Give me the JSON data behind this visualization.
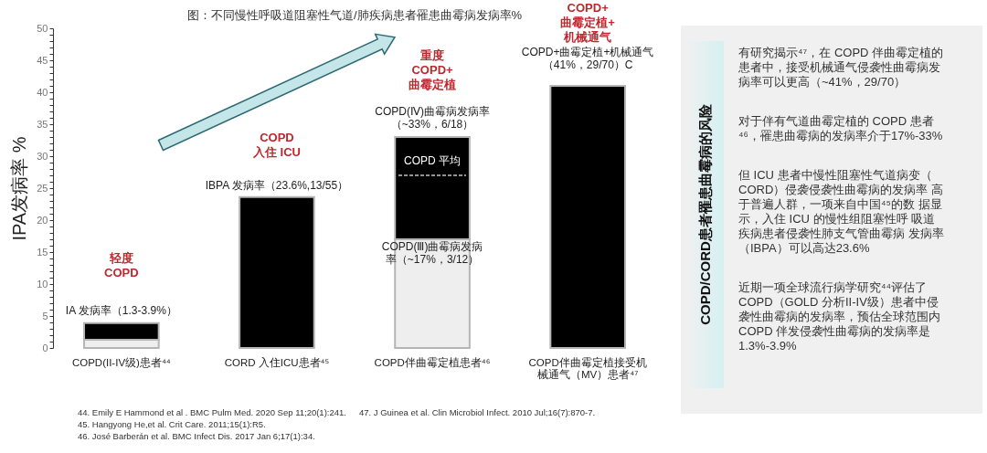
{
  "chart_data": [
    {
      "type": "bar",
      "title": "图：不同慢性呼吸道阻塞性气道/肺疾病患者罹患曲霉病发病率%",
      "ylabel": "IPA发病率 %",
      "categories": [
        "COPD(II-IV级)患者⁴⁴",
        "CORD 入住ICU患者⁴⁵",
        "COPD伴曲霉定植患者⁴⁶",
        "COPD伴曲霉定植接受机械通气（MV）患者⁴⁷"
      ],
      "stacked": true,
      "series": [
        {
          "color": "#eeeeee",
          "values": [
            1.3,
            null,
            17,
            null
          ]
        },
        {
          "color": "#000000",
          "values": [
            2.6,
            23.6,
            16,
            41
          ]
        }
      ],
      "ylim": [
        0,
        50
      ],
      "yticks": [
        0,
        {
          "value": 1,
          "label": null
        },
        {
          "value": 2,
          "label": null
        },
        {
          "value": 3,
          "label": null
        },
        {
          "value": 4,
          "label": null
        },
        5,
        {
          "value": 6,
          "label": null
        },
        {
          "value": 7,
          "label": null
        },
        {
          "value": 8,
          "label": null
        },
        {
          "value": 9,
          "label": null
        },
        10,
        {
          "value": 11,
          "label": null
        },
        {
          "value": 12,
          "label": null
        },
        {
          "value": 13,
          "label": null
        },
        {
          "value": 14,
          "label": null
        },
        15,
        {
          "value": 16,
          "label": null
        },
        {
          "value": 17,
          "label": null
        },
        {
          "value": 18,
          "label": null
        },
        {
          "value": 19,
          "label": null
        },
        20,
        {
          "value": 21,
          "label": null
        },
        {
          "value": 22,
          "label": null
        },
        {
          "value": 23,
          "label": null
        },
        {
          "value": 24,
          "label": null
        },
        25,
        {
          "value": 26,
          "label": null
        },
        {
          "value": 27,
          "label": null
        },
        {
          "value": 28,
          "label": null
        },
        {
          "value": 29,
          "label": null
        },
        30,
        {
          "value": 31,
          "label": null
        },
        {
          "value": 32,
          "label": null
        },
        {
          "value": 33,
          "label": null
        },
        {
          "value": 34,
          "label": null
        },
        35,
        {
          "value": 36,
          "label": null
        },
        {
          "value": 37,
          "label": null
        },
        {
          "value": 38,
          "label": null
        },
        {
          "value": 39,
          "label": null
        },
        40,
        {
          "value": 41,
          "label": null
        },
        {
          "value": 42,
          "label": null
        },
        {
          "value": 43,
          "label": null
        },
        {
          "value": 44,
          "label": null
        },
        45,
        {
          "value": 46,
          "label": null
        },
        {
          "value": 47,
          "label": null
        },
        {
          "value": 48,
          "label": null
        },
        {
          "value": 49,
          "label": null
        },
        50
      ],
      "ref_lines": [
        {
          "axis": "y",
          "value": 27,
          "label": "COPD 平均",
          "color": "#ffffff",
          "line_style": "dashed"
        }
      ],
      "annotations": [
        "IA 发病率（1.3-3.9%）",
        "轻度COPD",
        "IBPA 发病率（23.6%,13/55）",
        "COPD入住 ICU",
        "COPD(Ⅳ)曲霉病发病率（~33%，6/18）",
        "重度COPD+曲霉定植",
        "COPD(Ⅲ)曲霉病发病率（~17%，3/12）",
        "COPD+曲霉定植+机械通气（41%，29/70）C",
        "COPD+曲霉定植+机械通气",
        "44. Emily E Hammond et al . BMC Pulm Med. 2020 Sep 11;20(1):241.",
        "45. Hangyong He,et al. Crit Care. 2011;15(1):R5.",
        "46. José Barberán et al. BMC Infect Dis. 2017 Jan 6;17(1):34.",
        "47. J Guinea et al. Clin Microbiol Infect. 2010 Jul;16(7):870-7."
      ]
    },
    {
      "type": "other",
      "title": "COPD/CORD患者罹患曲霉病的风险",
      "annotations": [
        "有研究揭示⁴⁷，在 COPD 伴曲霉定植的患者中，接受机械通气侵袭性曲霉病发病率可以更高（~41%，29/70）",
        "对于伴有气道曲霉定植的 COPD 患者⁴⁶，罹患曲霉病的发病率介于17%-33%",
        "但 ICU 患者中慢性阻塞性气道病变（ CORD）侵袭侵袭性曲霉病的发病率 高于普遍人群，一项来自中国⁴⁵的数 据显示，入住 ICU 的慢性组阻塞性呼 吸道疾病患者侵袭性肺支气管曲霉病 发病率（IBPA）可以高达23.6%",
        "近期一项全球流行病学研究⁴⁴评估了COPD（GOLD 分析II-IV级）患者中侵袭性曲霉病的发病率，预估全球范围内 COPD 伴发侵袭性曲霉病的发病率是 1.3%-3.9%"
      ]
    }
  ]
}
